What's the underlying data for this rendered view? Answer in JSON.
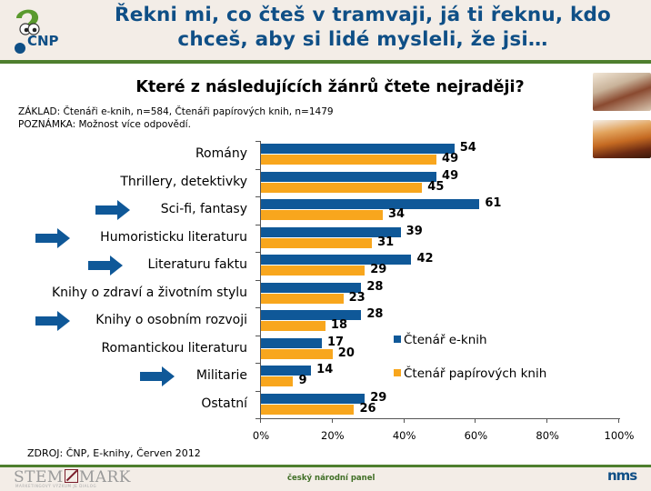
{
  "header": {
    "logo_text": "CNP",
    "title_line1": "Řekni mi, co čteš v tramvaji, já ti řeknu, kdo",
    "title_line2": "chceš, aby si lidé mysleli, že jsi…"
  },
  "question": "Které z následujících žánrů čtete nejraději?",
  "notes": {
    "basis": "ZÁKLAD: Čtenáři e-knih, n=584, Čtenáři papírových knih, n=1479",
    "remark": "POZNÁMKA: Možnost více odpovědí."
  },
  "chart_data": {
    "type": "bar",
    "orientation": "horizontal",
    "title": "Které z následujících žánrů čtete nejraději?",
    "xlabel": "",
    "ylabel": "",
    "xlim": [
      0,
      100
    ],
    "x_ticks": [
      "0%",
      "20%",
      "40%",
      "60%",
      "80%",
      "100%"
    ],
    "categories": [
      "Romány",
      "Thrillery, detektivky",
      "Sci-fi, fantasy",
      "Humoristicku literaturu",
      "Literaturu faktu",
      "Knihy o zdraví a životním stylu",
      "Knihy o osobním rozvoji",
      "Romantickou literaturu",
      "Militarie",
      "Ostatní"
    ],
    "highlighted": [
      false,
      false,
      true,
      true,
      true,
      false,
      true,
      false,
      true,
      false
    ],
    "series": [
      {
        "name": "Čtenář e-knih",
        "color": "#0f5898",
        "values": [
          54,
          49,
          61,
          39,
          42,
          28,
          28,
          17,
          14,
          29
        ]
      },
      {
        "name": "Čtenář papírových knih",
        "color": "#f8a61d",
        "values": [
          49,
          45,
          34,
          31,
          29,
          23,
          18,
          20,
          9,
          26
        ]
      }
    ],
    "legend_position": "inside right",
    "grid": false,
    "data_labels": true
  },
  "legend": {
    "ebook": "Čtenář e-knih",
    "paper": "Čtenář papírových knih"
  },
  "source": "ZDROJ: ČNP, E-knihy, Červen 2012",
  "footer": {
    "stem_left": "STEM",
    "stem_right": "MARK",
    "stem_sub": "MARKETINGOVÝ VÝZKUM JE DIALOG",
    "panel": "český národní panel",
    "nms": "nms"
  },
  "colors": {
    "title_blue": "#0f4f86",
    "ebook_bar": "#0f5898",
    "paper_bar": "#f8a61d",
    "green_rule": "#4e7f2e",
    "header_bg": "#f3ede7"
  }
}
